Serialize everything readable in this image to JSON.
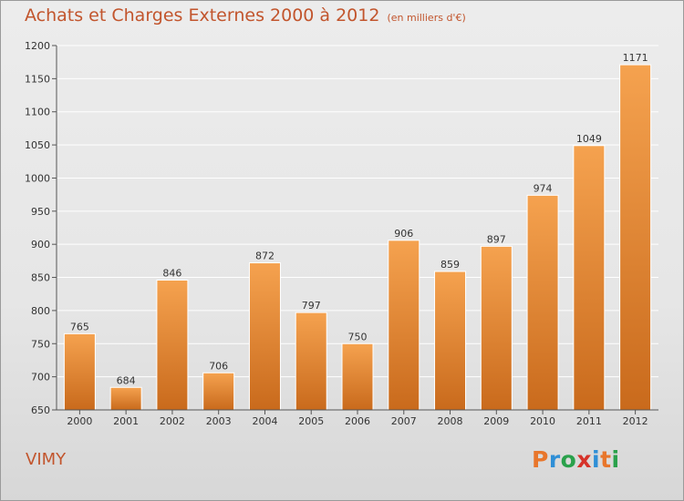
{
  "title": "Achats et Charges Externes 2000 à 2012",
  "subtitle": "(en milliers d'€)",
  "city": "VIMY",
  "logo": {
    "letters": [
      "P",
      "r",
      "o",
      "x",
      "i",
      "t",
      "i"
    ],
    "colors": [
      "#e8762b",
      "#2f8fd6",
      "#2aa14b",
      "#d6332a",
      "#2f8fd6",
      "#e8762b",
      "#2aa14b"
    ]
  },
  "colors": {
    "bar_top": "#f5a24f",
    "bar_bottom": "#c96a1c",
    "title": "#c2552d"
  },
  "chart_data": {
    "type": "bar",
    "title": "Achats et Charges Externes 2000 à 2012",
    "subtitle": "(en milliers d'€)",
    "categories": [
      "2000",
      "2001",
      "2002",
      "2003",
      "2004",
      "2005",
      "2006",
      "2007",
      "2008",
      "2009",
      "2010",
      "2011",
      "2012"
    ],
    "values": [
      765,
      684,
      846,
      706,
      872,
      797,
      750,
      906,
      859,
      897,
      974,
      1049,
      1171
    ],
    "ylim": [
      650,
      1200
    ],
    "yticks": [
      650,
      700,
      750,
      800,
      850,
      900,
      950,
      1000,
      1050,
      1100,
      1150,
      1200
    ],
    "grid": true,
    "xlabel": "",
    "ylabel": ""
  }
}
